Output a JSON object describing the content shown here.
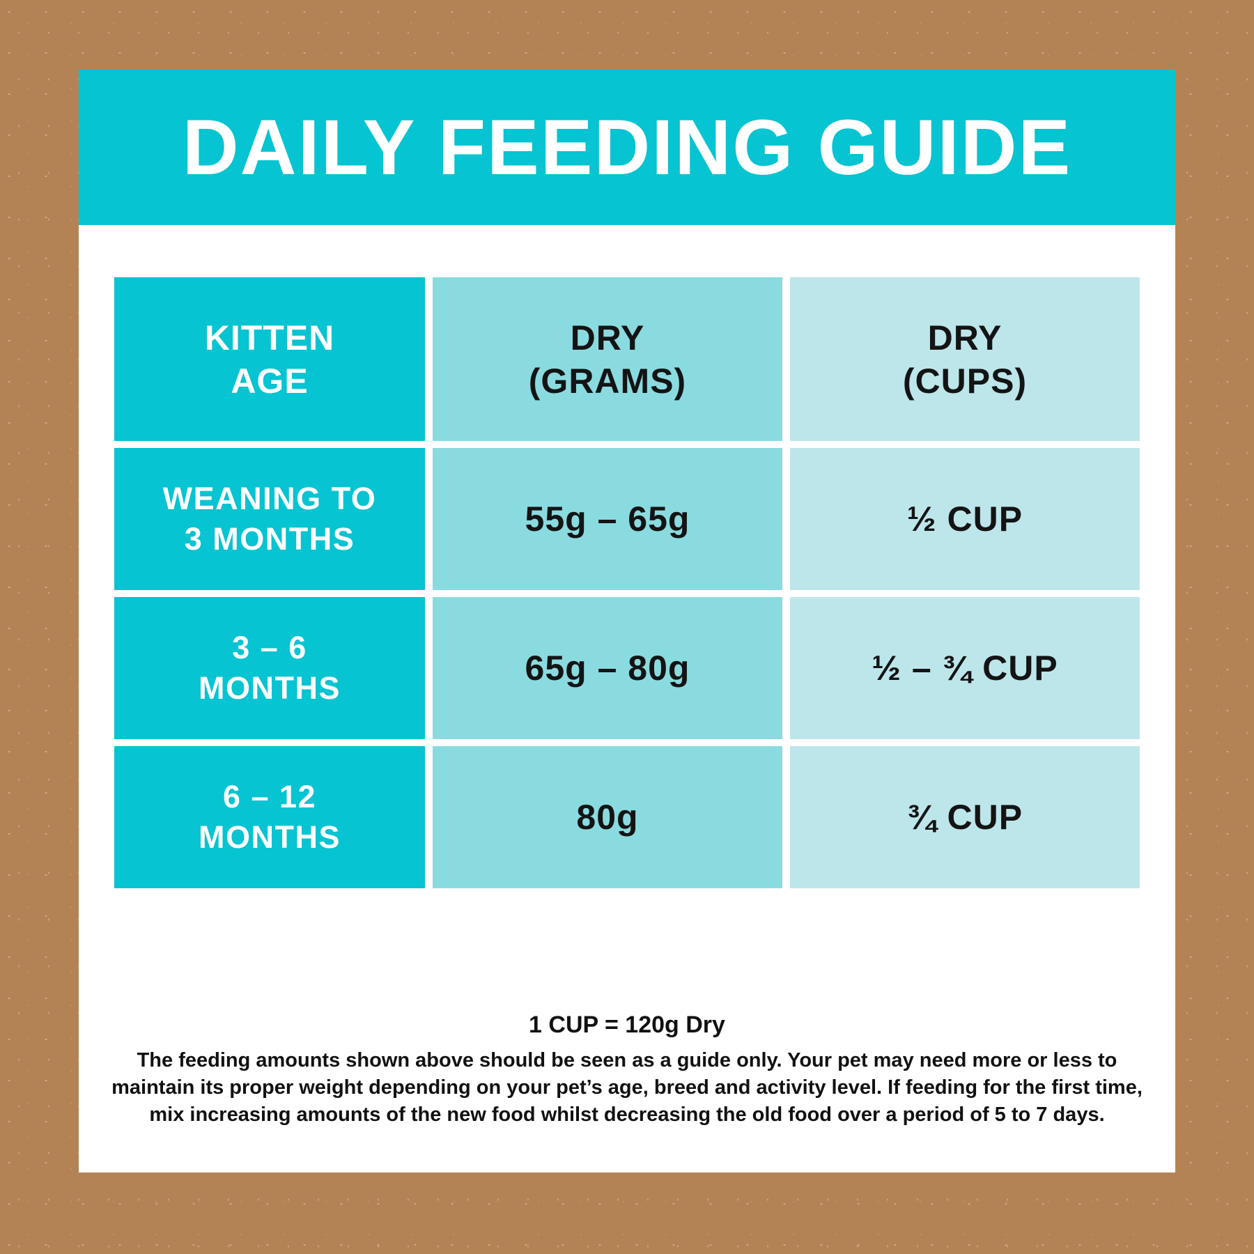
{
  "title": "DAILY FEEDING GUIDE",
  "table": {
    "header": {
      "col1": [
        "KITTEN",
        "AGE"
      ],
      "col2": [
        "DRY",
        "(GRAMS)"
      ],
      "col3": [
        "DRY",
        "(CUPS)"
      ]
    },
    "rows": [
      {
        "age": [
          "WEANING TO",
          "3 MONTHS"
        ],
        "dry_grams": "55g – 65g",
        "dry_cups": "½ CUP"
      },
      {
        "age": [
          "3 – 6",
          "MONTHS"
        ],
        "dry_grams": "65g – 80g",
        "dry_cups": "½ – ¾ CUP"
      },
      {
        "age": [
          "6 – 12",
          "MONTHS"
        ],
        "dry_grams": "80g",
        "dry_cups": "¾ CUP"
      }
    ]
  },
  "footer": {
    "note": "1 CUP = 120g Dry",
    "disclaimer": [
      "The feeding amounts shown above should be seen as a guide only. Your pet may need more or less to",
      "maintain its proper weight depending on your pet’s age, breed and activity level. If feeding for the first time,",
      "mix increasing amounts of the new food whilst decreasing the old food over a period of 5 to 7 days."
    ]
  },
  "colors": {
    "accent_teal": "#06c4d1",
    "cell_medium_teal": "#8adbe0",
    "cell_light_teal": "#bde6eb",
    "background_tan": "#b48355",
    "card_white": "#ffffff",
    "text_dark": "#141414"
  }
}
